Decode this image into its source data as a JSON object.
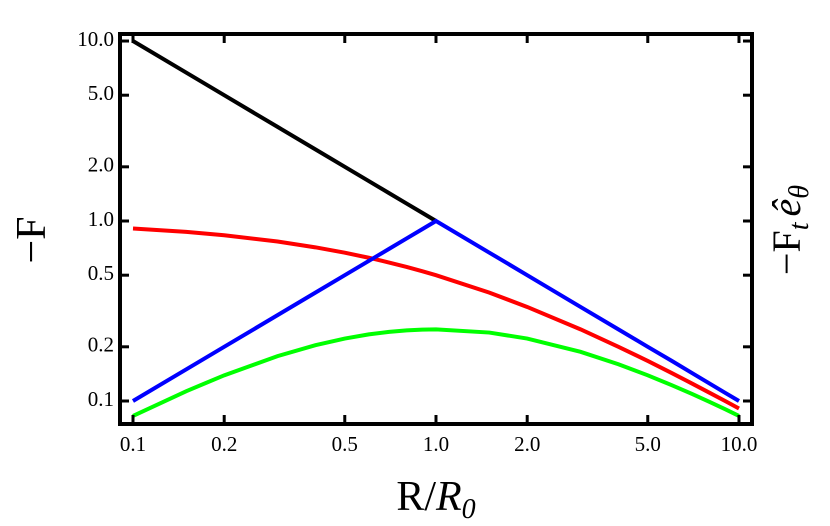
{
  "chart_data": {
    "type": "line",
    "x_label": [
      "R/",
      "R",
      "0"
    ],
    "y_label": "−F",
    "y2_label": [
      "−F",
      "t",
      "ê",
      "θ"
    ],
    "log_x": true,
    "log_y": true,
    "xlim": [
      0.0906,
      11.04
    ],
    "ylim": [
      0.0745,
      10.94
    ],
    "xticks": [
      0.1,
      0.2,
      0.5,
      {
        "value": 1,
        "label": "1.0"
      },
      {
        "value": 2,
        "label": "2.0"
      },
      {
        "value": 5,
        "label": "5.0"
      },
      {
        "value": 10,
        "label": "10.0"
      }
    ],
    "yticks": [
      {
        "value": 10,
        "label": "10.0"
      },
      {
        "value": 5,
        "label": "5.0"
      },
      {
        "value": 2,
        "label": "2.0"
      },
      {
        "value": 1,
        "label": "1.0"
      },
      0.5,
      0.2,
      0.1
    ],
    "x": [
      0.1,
      0.15,
      0.2,
      0.3,
      0.4,
      0.5,
      0.6,
      0.7,
      0.8,
      0.9,
      1,
      1.5,
      2,
      3,
      4,
      5,
      6,
      7,
      8,
      9,
      10
    ],
    "series": [
      {
        "color": "#000000",
        "values": [
          10,
          6.667,
          5,
          3.333,
          2.5,
          2,
          1.667,
          1.429,
          1.25,
          1.111,
          1,
          null,
          null,
          null,
          null,
          null,
          null,
          null,
          null,
          null,
          null
        ]
      },
      {
        "color": "#ff0000",
        "values": [
          0.909,
          0.87,
          0.833,
          0.769,
          0.714,
          0.667,
          0.625,
          0.588,
          0.556,
          0.526,
          0.5,
          0.4,
          0.333,
          0.25,
          0.2,
          0.167,
          0.143,
          0.125,
          0.111,
          0.1,
          0.0909
        ]
      },
      {
        "color": "#0000ff",
        "values": [
          0.1,
          0.15,
          0.2,
          0.3,
          0.4,
          0.5,
          0.6,
          0.7,
          0.8,
          0.9,
          1,
          0.667,
          0.5,
          0.333,
          0.25,
          0.2,
          0.167,
          0.143,
          0.125,
          0.111,
          0.1
        ]
      },
      {
        "color": "#00ff00",
        "values": [
          0.0826,
          0.1134,
          0.1389,
          0.1775,
          0.2041,
          0.2222,
          0.2344,
          0.2422,
          0.2469,
          0.2493,
          0.25,
          0.24,
          0.2222,
          0.1875,
          0.16,
          0.1389,
          0.1224,
          0.1094,
          0.0988,
          0.09,
          0.0826
        ]
      }
    ]
  }
}
